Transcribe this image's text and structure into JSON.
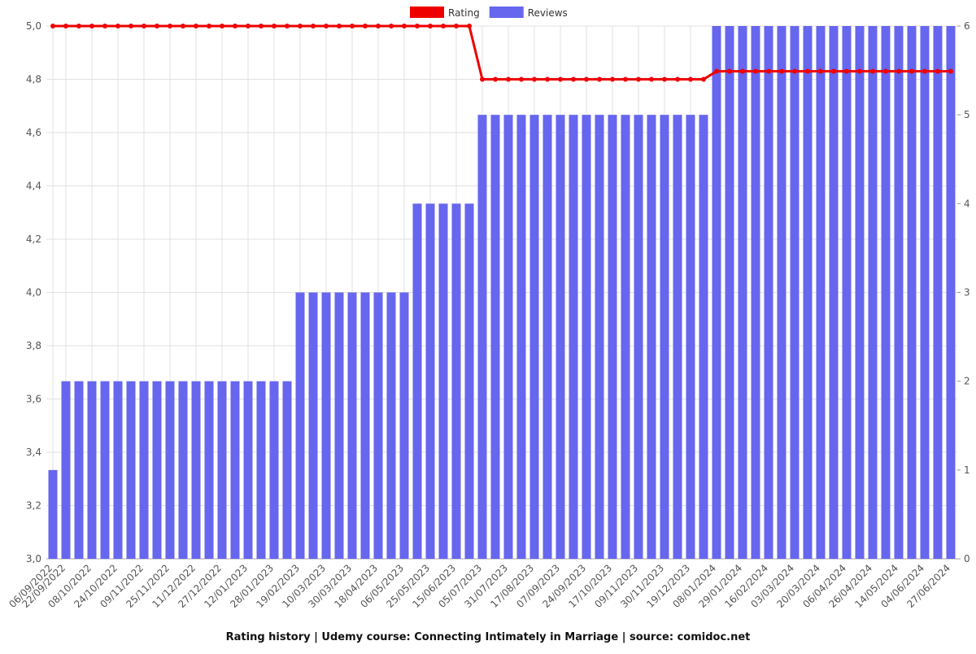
{
  "chart_data": {
    "type": "bar-line",
    "title": "Rating history | Udemy course: Connecting Intimately in Marriage | source: comidoc.net",
    "categories": [
      "06/09/2022",
      "22/09/2022",
      null,
      "08/10/2022",
      null,
      "24/10/2022",
      null,
      "09/11/2022",
      null,
      "25/11/2022",
      null,
      "11/12/2022",
      null,
      "27/12/2022",
      null,
      "12/01/2023",
      null,
      "28/01/2023",
      null,
      "19/02/2023",
      null,
      "10/03/2023",
      null,
      "30/03/2023",
      null,
      "18/04/2023",
      null,
      "06/05/2023",
      null,
      "25/05/2023",
      null,
      "15/06/2023",
      null,
      "05/07/2023",
      null,
      "31/07/2023",
      null,
      "17/08/2023",
      null,
      "07/09/2023",
      null,
      "24/09/2023",
      null,
      "17/10/2023",
      null,
      "09/11/2023",
      null,
      "30/11/2023",
      null,
      "19/12/2023",
      null,
      "08/01/2024",
      null,
      "29/01/2024",
      null,
      "16/02/2024",
      null,
      "03/03/2024",
      null,
      "20/03/2024",
      null,
      "06/04/2024",
      null,
      "26/04/2024",
      null,
      "14/05/2024",
      null,
      "04/06/2024",
      null,
      "27/06/2024"
    ],
    "series": [
      {
        "name": "Rating",
        "color": "#ee0000",
        "values": [
          5,
          5,
          5,
          5,
          5,
          5,
          5,
          5,
          5,
          5,
          5,
          5,
          5,
          5,
          5,
          5,
          5,
          5,
          5,
          5,
          5,
          5,
          5,
          5,
          5,
          5,
          5,
          5,
          5,
          5,
          5,
          5,
          5,
          4.8,
          4.8,
          4.8,
          4.8,
          4.8,
          4.8,
          4.8,
          4.8,
          4.8,
          4.8,
          4.8,
          4.8,
          4.8,
          4.8,
          4.8,
          4.8,
          4.8,
          4.8,
          4.83,
          4.83,
          4.83,
          4.83,
          4.83,
          4.83,
          4.83,
          4.83,
          4.83,
          4.83,
          4.83,
          4.83,
          4.83,
          4.83,
          4.83,
          4.83,
          4.83,
          4.83,
          4.83
        ]
      },
      {
        "name": "Reviews",
        "color": "#6666ee",
        "axis": "y2",
        "values": [
          1,
          2,
          2,
          2,
          2,
          2,
          2,
          2,
          2,
          2,
          2,
          2,
          2,
          2,
          2,
          2,
          2,
          2,
          2,
          3,
          3,
          3,
          3,
          3,
          3,
          3,
          3,
          3,
          4,
          4,
          4,
          4,
          4,
          5,
          5,
          5,
          5,
          5,
          5,
          5,
          5,
          5,
          5,
          5,
          5,
          5,
          5,
          5,
          5,
          5,
          5,
          6,
          6,
          6,
          6,
          6,
          6,
          6,
          6,
          6,
          6,
          6,
          6,
          6,
          6,
          6,
          6,
          6,
          6,
          6
        ]
      }
    ],
    "ylim": [
      3,
      5
    ],
    "yticks": [
      {
        "value": 3,
        "label": "3,0"
      },
      {
        "value": 3.2,
        "label": "3,2"
      },
      {
        "value": 3.4,
        "label": "3,4"
      },
      {
        "value": 3.6,
        "label": "3,6"
      },
      {
        "value": 3.8,
        "label": "3,8"
      },
      {
        "value": 4,
        "label": "4,0"
      },
      {
        "value": 4.2,
        "label": "4,2"
      },
      {
        "value": 4.4,
        "label": "4,4"
      },
      {
        "value": 4.6,
        "label": "4,6"
      },
      {
        "value": 4.8,
        "label": "4,8"
      },
      {
        "value": 5,
        "label": "5,0"
      }
    ],
    "y2lim": [
      0,
      6
    ],
    "y2ticks": [
      0,
      1,
      2,
      3,
      4,
      5,
      6
    ],
    "grid": true
  }
}
